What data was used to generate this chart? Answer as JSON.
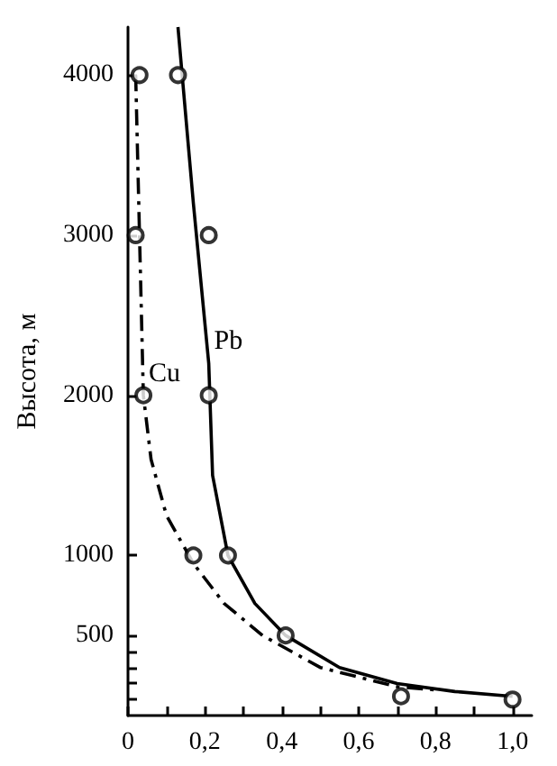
{
  "chart_data": {
    "type": "line",
    "ylabel": "Высота, м",
    "xlim": [
      0,
      1.05
    ],
    "ylim": [
      0,
      4300
    ],
    "xticks": [
      0,
      {
        "value": 0.1,
        "label": null
      },
      {
        "value": 0.2,
        "label": "0,2"
      },
      {
        "value": 0.3,
        "label": null
      },
      {
        "value": 0.4,
        "label": "0,4"
      },
      {
        "value": 0.5,
        "label": null
      },
      {
        "value": 0.6,
        "label": "0,6"
      },
      {
        "value": 0.7,
        "label": null
      },
      {
        "value": 0.8,
        "label": "0,8"
      },
      {
        "value": 0.9,
        "label": null
      },
      {
        "value": 1.0,
        "label": "1,0"
      }
    ],
    "yticks": [
      {
        "value": 100,
        "label": null
      },
      {
        "value": 200,
        "label": null
      },
      {
        "value": 300,
        "label": null
      },
      {
        "value": 400,
        "label": null
      },
      500,
      1000,
      2000,
      3000,
      4000
    ],
    "grid": false,
    "series": [
      {
        "name": "Pb",
        "color": "#000000",
        "line_style": "solid",
        "marker": "none",
        "x": [
          0.13,
          0.17,
          0.21,
          0.22,
          0.26,
          0.33,
          0.41,
          0.55,
          0.7,
          0.85,
          1.0
        ],
        "values": [
          4300,
          3200,
          2200,
          1500,
          1000,
          700,
          500,
          300,
          200,
          150,
          120
        ]
      },
      {
        "name": "Cu",
        "color": "#000000",
        "line_style": "dashed",
        "marker": "none",
        "x": [
          0.02,
          0.03,
          0.04,
          0.06,
          0.1,
          0.17,
          0.25,
          0.35,
          0.5,
          0.7,
          0.8
        ],
        "values": [
          4000,
          3000,
          2000,
          1600,
          1250,
          950,
          700,
          500,
          300,
          180,
          160
        ]
      },
      {
        "type": "scatter",
        "color": "#000000",
        "marker": "circle",
        "x": [
          0.03,
          0.13,
          0.02,
          0.21,
          0.04,
          0.21,
          0.17,
          0.26,
          0.41,
          0.71,
          1.0
        ],
        "values": [
          4000,
          4000,
          3000,
          3000,
          2000,
          2000,
          1000,
          1000,
          500,
          120,
          100
        ]
      }
    ]
  }
}
